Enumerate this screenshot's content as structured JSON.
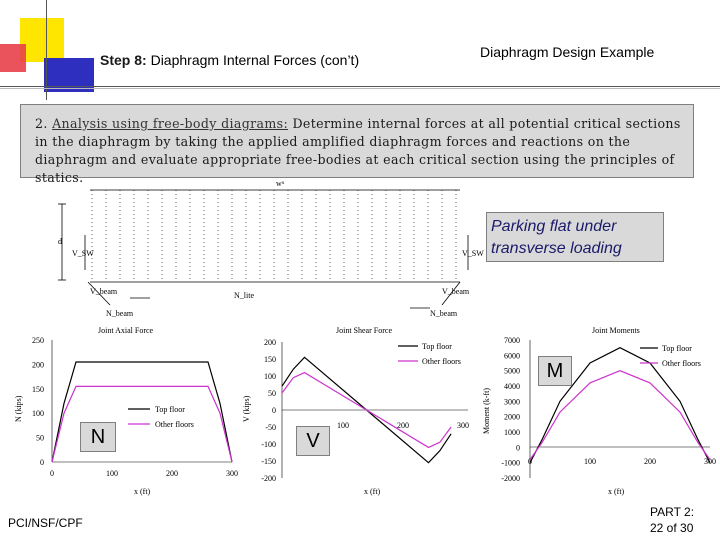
{
  "header": {
    "step_bold": "Step 8:",
    "step_rest": "Diaphragm Internal Forces (con’t)",
    "example_title": "Diaphragm Design Example",
    "colors": {
      "yellow": "#ffe600",
      "red": "#e8404a",
      "blue": "#2f2fbf"
    }
  },
  "analysis": {
    "number": "2.",
    "link_text": "Analysis using free-body diagrams:",
    "body_text": "Determine internal forces at all potential critical sections in the diaphragm by taking the applied amplified diaphragm forces and reactions on the diaphragm and evaluate appropriate free-bodies at each critical section using the principles of statics."
  },
  "fbd": {
    "label_w": "wᵘ",
    "label_d": "d",
    "label_vsw_left": "V_SW",
    "label_vsw_right": "V_SW",
    "label_vbeam_left": "V_beam",
    "label_vbeam_right": "V_beam",
    "label_nbeam_left": "N_beam",
    "label_nbeam_right": "N_beam",
    "label_nlite": "N_lite"
  },
  "parking_label": "Parking flat under transverse loading",
  "axial_chart": {
    "title": "Joint Axial Force",
    "ylabel": "N (kips)",
    "xlabel": "x (ft)",
    "yticks": [
      "0",
      "50",
      "100",
      "150",
      "200",
      "250"
    ],
    "xticks": [
      "0",
      "100",
      "200",
      "300"
    ],
    "legend": [
      "Top floor",
      "Other floors"
    ],
    "letter": "N"
  },
  "shear_chart": {
    "title": "Joint Shear Force",
    "ylabel": "V (kips)",
    "xlabel": "x (ft)",
    "yticks": [
      "200",
      "150",
      "100",
      "50",
      "0",
      "-50",
      "-100",
      "-150",
      "-200"
    ],
    "xticks": [
      "100",
      "200",
      "300"
    ],
    "legend": [
      "Top floor",
      "Other floors"
    ],
    "letter": "V"
  },
  "moment_chart": {
    "title": "Joint Moments",
    "ylabel": "Moment (k-ft)",
    "xlabel": "x (ft)",
    "yticks": [
      "7000",
      "6000",
      "5000",
      "4000",
      "3000",
      "2000",
      "1000",
      "0",
      "-1000",
      "-2000"
    ],
    "xticks": [
      "0",
      "100",
      "200",
      "300"
    ],
    "legend": [
      "Top floor",
      "Other floors"
    ],
    "letter": "M"
  },
  "chart_data": [
    {
      "type": "line",
      "title": "Joint Axial Force",
      "xlabel": "x (ft)",
      "ylabel": "N (kips)",
      "xlim": [
        0,
        300
      ],
      "ylim": [
        0,
        250
      ],
      "series": [
        {
          "name": "Top floor",
          "color": "#000000",
          "x": [
            0,
            20,
            40,
            260,
            280,
            300
          ],
          "values": [
            0,
            120,
            205,
            205,
            120,
            0
          ]
        },
        {
          "name": "Other floors",
          "color": "#cc33cc",
          "x": [
            0,
            20,
            40,
            260,
            280,
            300
          ],
          "values": [
            0,
            100,
            155,
            155,
            100,
            0
          ]
        }
      ]
    },
    {
      "type": "line",
      "title": "Joint Shear Force",
      "xlabel": "x (ft)",
      "ylabel": "V (kips)",
      "xlim": [
        0,
        300
      ],
      "ylim": [
        -200,
        200
      ],
      "series": [
        {
          "name": "Top floor",
          "color": "#000000",
          "x": [
            0,
            20,
            40,
            150,
            260,
            280,
            300
          ],
          "values": [
            70,
            120,
            155,
            0,
            -155,
            -120,
            -70
          ]
        },
        {
          "name": "Other floors",
          "color": "#cc33cc",
          "x": [
            0,
            20,
            40,
            150,
            260,
            280,
            300
          ],
          "values": [
            50,
            95,
            110,
            0,
            -110,
            -95,
            -50
          ]
        }
      ]
    },
    {
      "type": "line",
      "title": "Joint Moments",
      "xlabel": "x (ft)",
      "ylabel": "Moment (k-ft)",
      "xlim": [
        0,
        300
      ],
      "ylim": [
        -2000,
        7000
      ],
      "series": [
        {
          "name": "Top floor",
          "color": "#000000",
          "x": [
            0,
            20,
            50,
            100,
            150,
            200,
            250,
            280,
            300
          ],
          "values": [
            -1000,
            500,
            3000,
            5500,
            6500,
            5500,
            3000,
            500,
            -1000
          ]
        },
        {
          "name": "Other floors",
          "color": "#cc33cc",
          "x": [
            0,
            20,
            50,
            100,
            150,
            200,
            250,
            280,
            300
          ],
          "values": [
            -800,
            300,
            2300,
            4200,
            5000,
            4200,
            2300,
            300,
            -800
          ]
        }
      ]
    }
  ],
  "footer": {
    "left": "PCI/NSF/CPF",
    "part": "PART 2:",
    "page": "22 of 30"
  }
}
